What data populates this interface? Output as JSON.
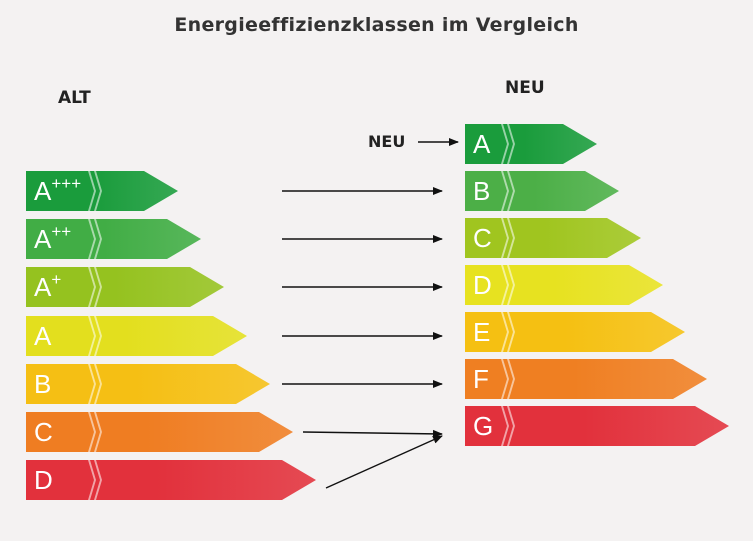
{
  "title": "Energieeffizienzklassen im Vergleich",
  "old_header": "ALT",
  "new_header": "NEU",
  "new_marker_label": "NEU",
  "old_classes": [
    {
      "label": "A+++",
      "color": "#1a9c3c"
    },
    {
      "label": "A++",
      "color": "#41ad45"
    },
    {
      "label": "A+",
      "color": "#95c21f"
    },
    {
      "label": "A",
      "color": "#e3df1e"
    },
    {
      "label": "B",
      "color": "#f5bf14"
    },
    {
      "label": "C",
      "color": "#ef7d22"
    },
    {
      "label": "D",
      "color": "#e2313c"
    }
  ],
  "new_classes": [
    {
      "label": "A",
      "color": "#1a9c3c"
    },
    {
      "label": "B",
      "color": "#4caf47"
    },
    {
      "label": "C",
      "color": "#a0c51f"
    },
    {
      "label": "D",
      "color": "#e7e220"
    },
    {
      "label": "E",
      "color": "#f5c012"
    },
    {
      "label": "F",
      "color": "#ef7f22"
    },
    {
      "label": "G",
      "color": "#e2313c"
    }
  ],
  "mapping": [
    {
      "from": "A+++",
      "to": "B"
    },
    {
      "from": "A++",
      "to": "C"
    },
    {
      "from": "A+",
      "to": "D"
    },
    {
      "from": "A",
      "to": "E"
    },
    {
      "from": "B",
      "to": "F"
    },
    {
      "from": "C",
      "to": "G"
    },
    {
      "from": "D",
      "to": "G"
    }
  ]
}
